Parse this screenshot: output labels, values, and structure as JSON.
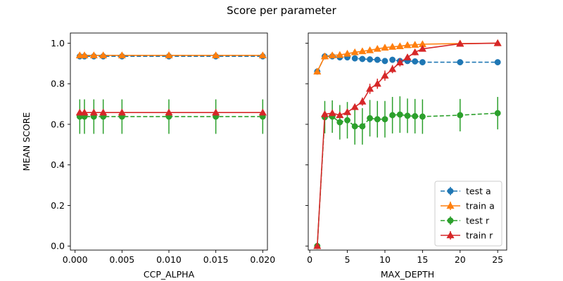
{
  "suptitle": "Score per parameter",
  "colors": {
    "test_a": "#1f77b4",
    "train_a": "#ff7f0e",
    "test_r": "#2ca02c",
    "train_r": "#d62728"
  },
  "chart_data": [
    {
      "type": "line",
      "title": "",
      "xlabel": "CCP_ALPHA",
      "ylabel": "MEAN SCORE",
      "xlim": [
        -0.0005,
        0.0205
      ],
      "ylim": [
        -0.02,
        1.05
      ],
      "xticks": [
        0.0,
        0.005,
        0.01,
        0.015,
        0.02
      ],
      "xtick_labels": [
        "0.000",
        "0.005",
        "0.010",
        "0.015",
        "0.020"
      ],
      "yticks": [
        0.0,
        0.2,
        0.4,
        0.6,
        0.8,
        1.0
      ],
      "ytick_labels": [
        "0.0",
        "0.2",
        "0.4",
        "0.6",
        "0.8",
        "1.0"
      ],
      "x": [
        0.0005,
        0.001,
        0.002,
        0.003,
        0.005,
        0.01,
        0.015,
        0.02
      ],
      "series": [
        {
          "key": "test_a",
          "name": "test a",
          "marker": "o",
          "linestyle": "dashed",
          "values": [
            0.935,
            0.935,
            0.935,
            0.935,
            0.935,
            0.935,
            0.935,
            0.935
          ],
          "err": [
            0.005,
            0.005,
            0.005,
            0.005,
            0.005,
            0.005,
            0.005,
            0.005
          ]
        },
        {
          "key": "train_a",
          "name": "train a",
          "marker": "^",
          "linestyle": "solid",
          "values": [
            0.94,
            0.94,
            0.94,
            0.94,
            0.94,
            0.94,
            0.94,
            0.94
          ],
          "err": [
            0.003,
            0.003,
            0.003,
            0.003,
            0.003,
            0.003,
            0.003,
            0.003
          ]
        },
        {
          "key": "test_r",
          "name": "test r",
          "marker": "o",
          "linestyle": "dashed",
          "values": [
            0.638,
            0.638,
            0.638,
            0.638,
            0.638,
            0.638,
            0.638,
            0.638
          ],
          "err": [
            0.085,
            0.085,
            0.085,
            0.085,
            0.085,
            0.085,
            0.085,
            0.085
          ]
        },
        {
          "key": "train_r",
          "name": "train r",
          "marker": "^",
          "linestyle": "solid",
          "values": [
            0.658,
            0.658,
            0.658,
            0.658,
            0.658,
            0.658,
            0.658,
            0.658
          ],
          "err": [
            0.012,
            0.012,
            0.012,
            0.012,
            0.012,
            0.012,
            0.012,
            0.012
          ]
        }
      ]
    },
    {
      "type": "line",
      "title": "",
      "xlabel": "MAX_DEPTH",
      "ylabel": "",
      "xlim": [
        -0.2,
        26.2
      ],
      "ylim": [
        -0.02,
        1.05
      ],
      "xticks": [
        0,
        5,
        10,
        15,
        20,
        25
      ],
      "xtick_labels": [
        "0",
        "5",
        "10",
        "15",
        "20",
        "25"
      ],
      "yticks": [
        0.0,
        0.2,
        0.4,
        0.6,
        0.8,
        1.0
      ],
      "ytick_labels": [],
      "x": [
        1,
        2,
        3,
        4,
        5,
        6,
        7,
        8,
        9,
        10,
        11,
        12,
        13,
        14,
        15,
        20,
        25
      ],
      "legend": "bottom-right",
      "series": [
        {
          "key": "test_a",
          "name": "test a",
          "marker": "o",
          "linestyle": "dashed",
          "values": [
            0.86,
            0.935,
            0.935,
            0.93,
            0.93,
            0.925,
            0.922,
            0.92,
            0.918,
            0.912,
            0.918,
            0.912,
            0.912,
            0.91,
            0.906,
            0.906,
            0.906
          ],
          "err": [
            0.01,
            0.01,
            0.01,
            0.01,
            0.01,
            0.01,
            0.01,
            0.01,
            0.01,
            0.01,
            0.01,
            0.01,
            0.01,
            0.01,
            0.01,
            0.01,
            0.01
          ]
        },
        {
          "key": "train_a",
          "name": "train a",
          "marker": "^",
          "linestyle": "solid",
          "values": [
            0.86,
            0.935,
            0.94,
            0.942,
            0.948,
            0.955,
            0.96,
            0.965,
            0.972,
            0.978,
            0.982,
            0.985,
            0.99,
            0.992,
            0.995,
            0.998,
            1.0
          ],
          "err": [
            0.005,
            0.005,
            0.005,
            0.005,
            0.005,
            0.005,
            0.005,
            0.005,
            0.005,
            0.005,
            0.005,
            0.005,
            0.005,
            0.005,
            0.005,
            0.005,
            0.005
          ]
        },
        {
          "key": "test_r",
          "name": "test r",
          "marker": "o",
          "linestyle": "dashed",
          "values": [
            0.0,
            0.635,
            0.638,
            0.61,
            0.62,
            0.59,
            0.59,
            0.63,
            0.625,
            0.625,
            0.645,
            0.648,
            0.642,
            0.64,
            0.638,
            0.645,
            0.655
          ],
          "err": [
            0.005,
            0.08,
            0.08,
            0.085,
            0.09,
            0.09,
            0.09,
            0.09,
            0.09,
            0.09,
            0.09,
            0.09,
            0.085,
            0.085,
            0.085,
            0.08,
            0.08
          ]
        },
        {
          "key": "train_r",
          "name": "train r",
          "marker": "^",
          "linestyle": "solid",
          "values": [
            0.0,
            0.65,
            0.655,
            0.645,
            0.66,
            0.685,
            0.712,
            0.775,
            0.8,
            0.84,
            0.872,
            0.905,
            0.93,
            0.955,
            0.972,
            0.997,
            1.0
          ],
          "err": [
            0.005,
            0.012,
            0.012,
            0.012,
            0.012,
            0.015,
            0.02,
            0.025,
            0.025,
            0.025,
            0.02,
            0.02,
            0.015,
            0.015,
            0.01,
            0.005,
            0.005
          ]
        }
      ]
    }
  ]
}
